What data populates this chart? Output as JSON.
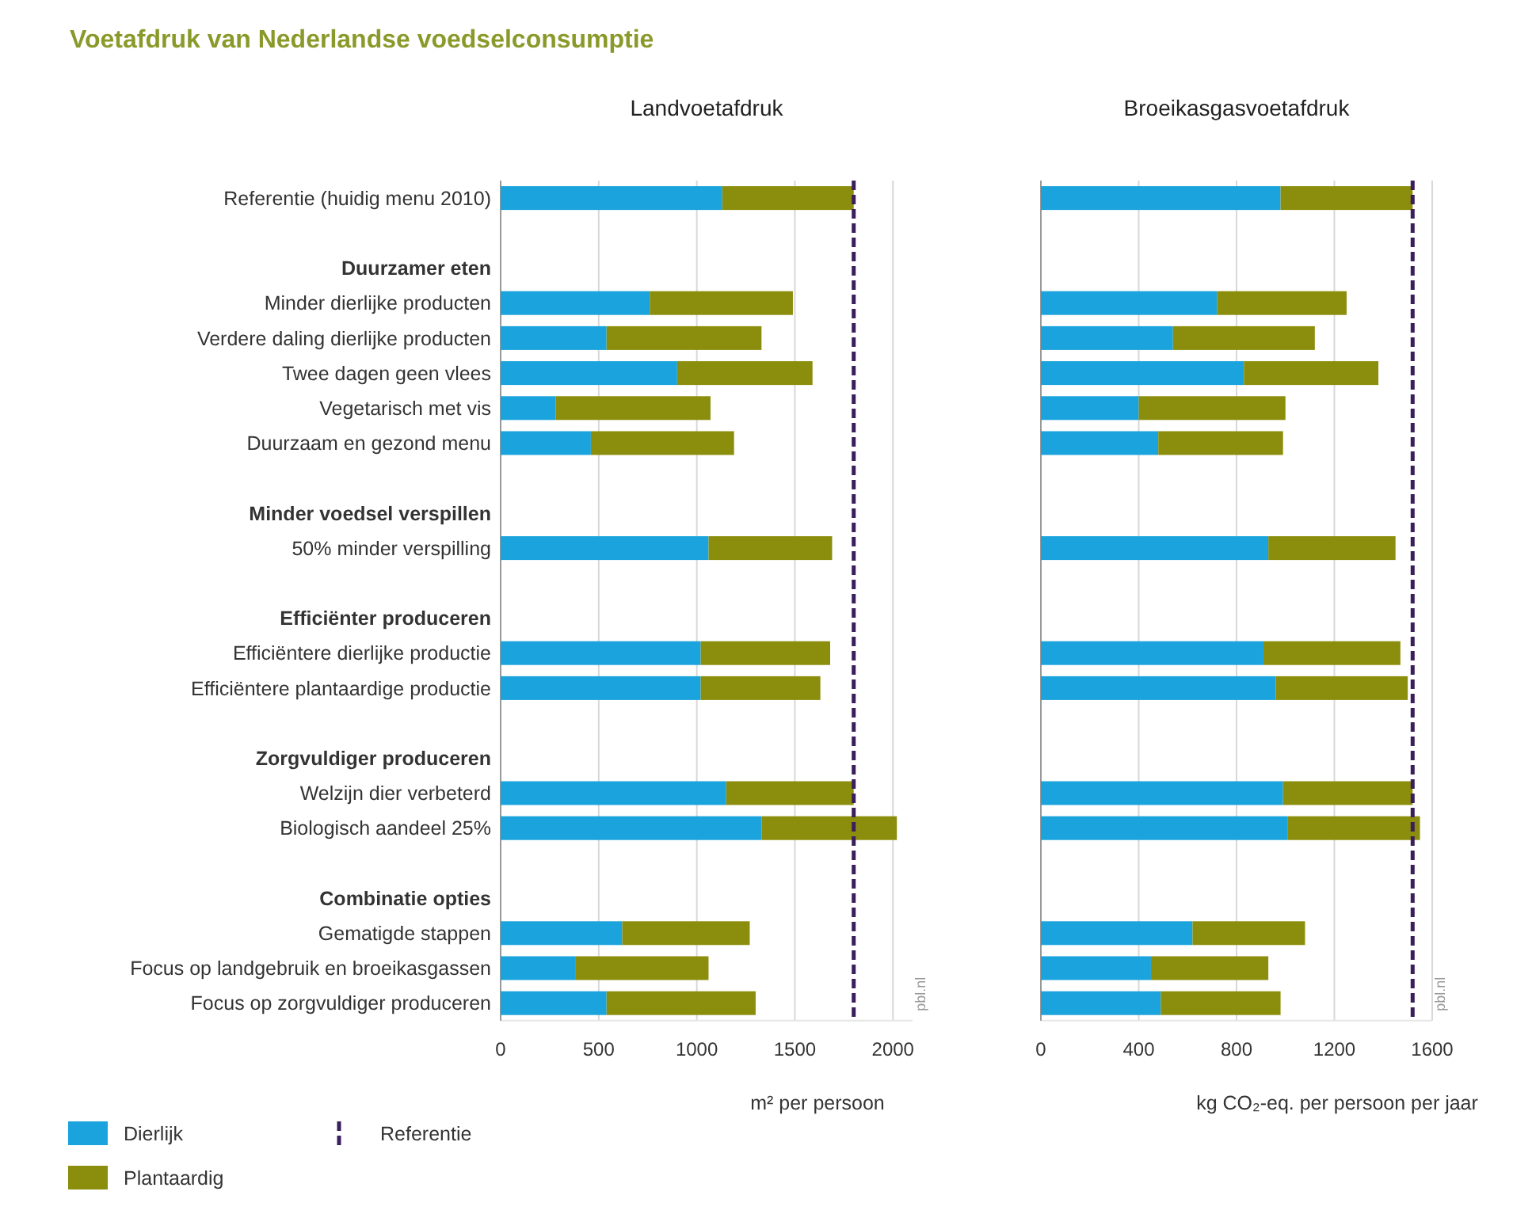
{
  "chart_data": [
    {
      "type": "bar",
      "orientation": "horizontal",
      "stacked": true,
      "title": "Voetafdruk van Nederlandse voedselconsumptie",
      "subtitle": "Landvoetafdruk",
      "xlabel": "m² per persoon",
      "categories": [
        "Referentie (huidig menu 2010)",
        null,
        "Duurzamer eten",
        "Minder dierlijke producten",
        "Verdere daling dierlijke producten",
        "Twee dagen geen vlees",
        "Vegetarisch met vis",
        "Duurzaam en gezond menu",
        null,
        "Minder voedsel verspillen",
        "50% minder verspilling",
        null,
        "Efficiënter produceren",
        "Efficiëntere dierlijke productie",
        "Efficiëntere plantaardige productie",
        null,
        "Zorgvuldiger produceren",
        "Welzijn dier verbeterd",
        "Biologisch aandeel 25%",
        null,
        "Combinatie opties",
        "Gematigde stappen",
        "Focus op landgebruik en broeikasgassen",
        "Focus op zorgvuldiger produceren"
      ],
      "series": [
        {
          "name": "Dierlijk",
          "color": "#1aa3dc",
          "values": [
            1130,
            null,
            null,
            760,
            540,
            900,
            280,
            460,
            null,
            null,
            1060,
            null,
            null,
            1020,
            1020,
            null,
            null,
            1150,
            1330,
            null,
            null,
            620,
            380,
            540
          ]
        },
        {
          "name": "Plantaardig",
          "color": "#8b8e0c",
          "values": [
            670,
            null,
            null,
            730,
            790,
            690,
            790,
            730,
            null,
            null,
            630,
            null,
            null,
            660,
            610,
            null,
            null,
            650,
            690,
            null,
            null,
            650,
            680,
            760
          ]
        }
      ],
      "xlim": [
        0,
        2100
      ],
      "xticks": [
        0,
        500,
        1000,
        1500,
        2000
      ],
      "grid": "x",
      "legend": "bottom left",
      "ref_lines": [
        {
          "axis": "x",
          "value": 1800,
          "label": "Referentie",
          "color": "#3a1f5c",
          "line_style": "dashed"
        }
      ],
      "annotations": [
        "pbl.nl"
      ]
    },
    {
      "type": "bar",
      "orientation": "horizontal",
      "stacked": true,
      "title": "Broeikasgasvoetafdruk",
      "xlabel": "kg CO₂-eq. per persoon per jaar",
      "categories": [
        null,
        null,
        null,
        null,
        null,
        null,
        null,
        null,
        null,
        null,
        null,
        null,
        null,
        null,
        null,
        null,
        null,
        null,
        null,
        null,
        null,
        null,
        null,
        null
      ],
      "tick_labels": "x",
      "series": [
        {
          "color": "#1aa3dc",
          "values": [
            980,
            null,
            null,
            720,
            540,
            830,
            400,
            480,
            null,
            null,
            930,
            null,
            null,
            910,
            960,
            null,
            null,
            990,
            1010,
            null,
            null,
            620,
            450,
            490
          ]
        },
        {
          "color": "#8b8e0c",
          "values": [
            540,
            null,
            null,
            530,
            580,
            550,
            600,
            510,
            null,
            null,
            520,
            null,
            null,
            560,
            540,
            null,
            null,
            530,
            540,
            null,
            null,
            460,
            480,
            490
          ]
        }
      ],
      "xlim": [
        0,
        1600
      ],
      "xticks": [
        0,
        400,
        800,
        1200,
        1600
      ],
      "grid": "x",
      "ref_lines": [
        {
          "axis": "x",
          "value": 1520,
          "color": "#3a1f5c",
          "line_style": "dashed"
        }
      ],
      "annotations": [
        "pbl.nl"
      ]
    }
  ]
}
